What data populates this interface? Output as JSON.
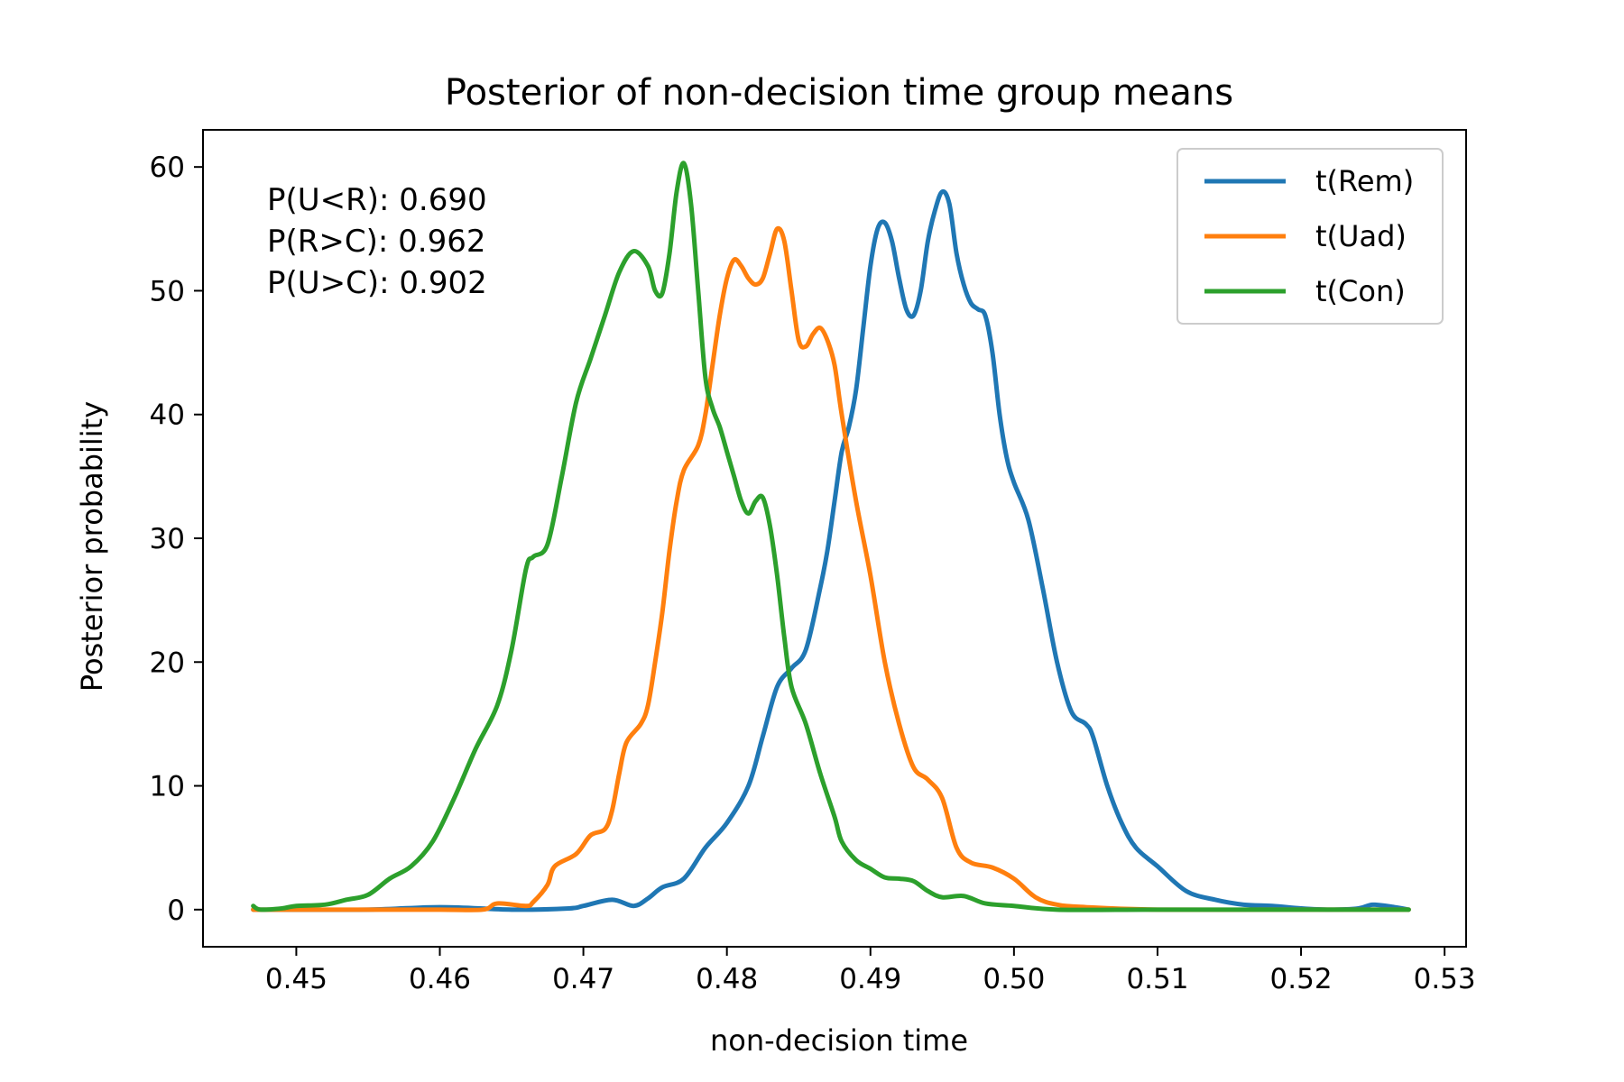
{
  "chart_data": {
    "type": "line",
    "title": "Posterior of non-decision time group means",
    "xlabel": "non-decision time",
    "ylabel": "Posterior probability",
    "xlim": [
      0.4435,
      0.5315
    ],
    "ylim": [
      -3,
      63
    ],
    "xticks": [
      0.45,
      0.46,
      0.47,
      0.48,
      0.49,
      0.5,
      0.51,
      0.52,
      0.53
    ],
    "xtick_labels": [
      "0.45",
      "0.46",
      "0.47",
      "0.48",
      "0.49",
      "0.50",
      "0.51",
      "0.52",
      "0.53"
    ],
    "yticks": [
      0,
      10,
      20,
      30,
      40,
      50,
      60
    ],
    "ytick_labels": [
      "0",
      "10",
      "20",
      "30",
      "40",
      "50",
      "60"
    ],
    "grid": false,
    "legend_position": "top-right",
    "annotations": [
      "P(U<R): 0.690",
      "P(R>C): 0.962",
      "P(U>C): 0.902"
    ],
    "series": [
      {
        "name": "t(Rem)",
        "color": "#1f77b4",
        "points": [
          [
            0.447,
            0
          ],
          [
            0.455,
            0
          ],
          [
            0.46,
            0.2
          ],
          [
            0.465,
            0
          ],
          [
            0.469,
            0.1
          ],
          [
            0.47,
            0.3
          ],
          [
            0.472,
            0.8
          ],
          [
            0.4735,
            0.3
          ],
          [
            0.4745,
            0.9
          ],
          [
            0.4755,
            1.8
          ],
          [
            0.477,
            2.5
          ],
          [
            0.4785,
            5.0
          ],
          [
            0.48,
            7.0
          ],
          [
            0.4815,
            10.0
          ],
          [
            0.4825,
            14.0
          ],
          [
            0.4835,
            18.0
          ],
          [
            0.4845,
            19.5
          ],
          [
            0.4855,
            21.0
          ],
          [
            0.4865,
            26.0
          ],
          [
            0.487,
            29.0
          ],
          [
            0.4875,
            33.0
          ],
          [
            0.488,
            37.0
          ],
          [
            0.4885,
            39.0
          ],
          [
            0.489,
            42.0
          ],
          [
            0.4895,
            47.0
          ],
          [
            0.49,
            52.0
          ],
          [
            0.4905,
            55.0
          ],
          [
            0.491,
            55.5
          ],
          [
            0.4915,
            54.0
          ],
          [
            0.492,
            51.0
          ],
          [
            0.4925,
            48.5
          ],
          [
            0.493,
            48.0
          ],
          [
            0.4935,
            50.0
          ],
          [
            0.494,
            54.0
          ],
          [
            0.4945,
            56.5
          ],
          [
            0.495,
            58.0
          ],
          [
            0.4955,
            57.0
          ],
          [
            0.496,
            53.0
          ],
          [
            0.4965,
            50.5
          ],
          [
            0.497,
            49.0
          ],
          [
            0.4975,
            48.5
          ],
          [
            0.498,
            48.0
          ],
          [
            0.4985,
            45.0
          ],
          [
            0.499,
            40.0
          ],
          [
            0.4995,
            36.5
          ],
          [
            0.5,
            34.5
          ],
          [
            0.501,
            31.5
          ],
          [
            0.502,
            26.0
          ],
          [
            0.503,
            20.0
          ],
          [
            0.504,
            16.0
          ],
          [
            0.505,
            15.0
          ],
          [
            0.5055,
            14.0
          ],
          [
            0.5065,
            10.0
          ],
          [
            0.5075,
            7.0
          ],
          [
            0.5085,
            5.0
          ],
          [
            0.51,
            3.5
          ],
          [
            0.512,
            1.5
          ],
          [
            0.514,
            0.8
          ],
          [
            0.516,
            0.4
          ],
          [
            0.518,
            0.3
          ],
          [
            0.52,
            0.1
          ],
          [
            0.522,
            0
          ],
          [
            0.524,
            0.1
          ],
          [
            0.525,
            0.4
          ],
          [
            0.5265,
            0.2
          ],
          [
            0.5275,
            0
          ]
        ]
      },
      {
        "name": "t(Uad)",
        "color": "#ff7f0e",
        "points": [
          [
            0.447,
            0
          ],
          [
            0.455,
            0
          ],
          [
            0.46,
            0
          ],
          [
            0.463,
            0
          ],
          [
            0.464,
            0.5
          ],
          [
            0.466,
            0.3
          ],
          [
            0.4665,
            0.6
          ],
          [
            0.4675,
            2.0
          ],
          [
            0.468,
            3.5
          ],
          [
            0.4695,
            4.5
          ],
          [
            0.4705,
            6.0
          ],
          [
            0.4715,
            6.5
          ],
          [
            0.472,
            8.0
          ],
          [
            0.4725,
            11.0
          ],
          [
            0.473,
            13.5
          ],
          [
            0.474,
            15.0
          ],
          [
            0.4745,
            16.5
          ],
          [
            0.475,
            20.0
          ],
          [
            0.4755,
            24.0
          ],
          [
            0.476,
            29.0
          ],
          [
            0.4765,
            33.0
          ],
          [
            0.477,
            35.5
          ],
          [
            0.478,
            37.5
          ],
          [
            0.4785,
            40.0
          ],
          [
            0.479,
            44.0
          ],
          [
            0.4795,
            48.0
          ],
          [
            0.48,
            51.0
          ],
          [
            0.4805,
            52.5
          ],
          [
            0.481,
            52.0
          ],
          [
            0.4815,
            51.0
          ],
          [
            0.482,
            50.5
          ],
          [
            0.4825,
            51.0
          ],
          [
            0.483,
            53.0
          ],
          [
            0.4835,
            55.0
          ],
          [
            0.484,
            54.0
          ],
          [
            0.4845,
            50.0
          ],
          [
            0.485,
            46.0
          ],
          [
            0.4855,
            45.5
          ],
          [
            0.486,
            46.5
          ],
          [
            0.4865,
            47.0
          ],
          [
            0.487,
            46.0
          ],
          [
            0.4875,
            44.0
          ],
          [
            0.488,
            40.0
          ],
          [
            0.489,
            33.0
          ],
          [
            0.49,
            27.0
          ],
          [
            0.491,
            20.0
          ],
          [
            0.492,
            15.0
          ],
          [
            0.493,
            11.5
          ],
          [
            0.494,
            10.5
          ],
          [
            0.495,
            9.0
          ],
          [
            0.496,
            5.0
          ],
          [
            0.497,
            3.8
          ],
          [
            0.4985,
            3.4
          ],
          [
            0.5,
            2.5
          ],
          [
            0.5015,
            1.0
          ],
          [
            0.503,
            0.4
          ],
          [
            0.505,
            0.2
          ],
          [
            0.51,
            0
          ],
          [
            0.52,
            0
          ],
          [
            0.5275,
            0
          ]
        ]
      },
      {
        "name": "t(Con)",
        "color": "#2ca02c",
        "points": [
          [
            0.447,
            0.3
          ],
          [
            0.4475,
            0
          ],
          [
            0.449,
            0.1
          ],
          [
            0.45,
            0.3
          ],
          [
            0.452,
            0.4
          ],
          [
            0.4535,
            0.8
          ],
          [
            0.455,
            1.2
          ],
          [
            0.4565,
            2.5
          ],
          [
            0.458,
            3.5
          ],
          [
            0.4595,
            5.5
          ],
          [
            0.461,
            9.0
          ],
          [
            0.4625,
            13.0
          ],
          [
            0.464,
            16.5
          ],
          [
            0.465,
            21.0
          ],
          [
            0.466,
            27.5
          ],
          [
            0.4665,
            28.5
          ],
          [
            0.4675,
            29.5
          ],
          [
            0.4685,
            35.0
          ],
          [
            0.4695,
            41.0
          ],
          [
            0.4705,
            44.5
          ],
          [
            0.4715,
            48.0
          ],
          [
            0.4725,
            51.5
          ],
          [
            0.4735,
            53.2
          ],
          [
            0.4745,
            52.0
          ],
          [
            0.475,
            50.0
          ],
          [
            0.4755,
            49.8
          ],
          [
            0.476,
            53.0
          ],
          [
            0.4765,
            58.0
          ],
          [
            0.477,
            60.3
          ],
          [
            0.4775,
            57.0
          ],
          [
            0.478,
            50.0
          ],
          [
            0.4785,
            43.0
          ],
          [
            0.479,
            40.5
          ],
          [
            0.4795,
            39.0
          ],
          [
            0.48,
            37.0
          ],
          [
            0.4805,
            35.0
          ],
          [
            0.481,
            33.0
          ],
          [
            0.4815,
            32.0
          ],
          [
            0.482,
            33.0
          ],
          [
            0.4825,
            33.3
          ],
          [
            0.483,
            31.0
          ],
          [
            0.4835,
            27.0
          ],
          [
            0.484,
            22.0
          ],
          [
            0.4845,
            18.0
          ],
          [
            0.4855,
            15.0
          ],
          [
            0.4865,
            11.0
          ],
          [
            0.4875,
            7.5
          ],
          [
            0.488,
            5.5
          ],
          [
            0.489,
            4.0
          ],
          [
            0.49,
            3.3
          ],
          [
            0.491,
            2.6
          ],
          [
            0.492,
            2.5
          ],
          [
            0.493,
            2.3
          ],
          [
            0.494,
            1.5
          ],
          [
            0.495,
            1.0
          ],
          [
            0.4965,
            1.1
          ],
          [
            0.498,
            0.5
          ],
          [
            0.5,
            0.3
          ],
          [
            0.503,
            0
          ],
          [
            0.51,
            0
          ],
          [
            0.52,
            0
          ],
          [
            0.5275,
            0
          ]
        ]
      }
    ]
  }
}
